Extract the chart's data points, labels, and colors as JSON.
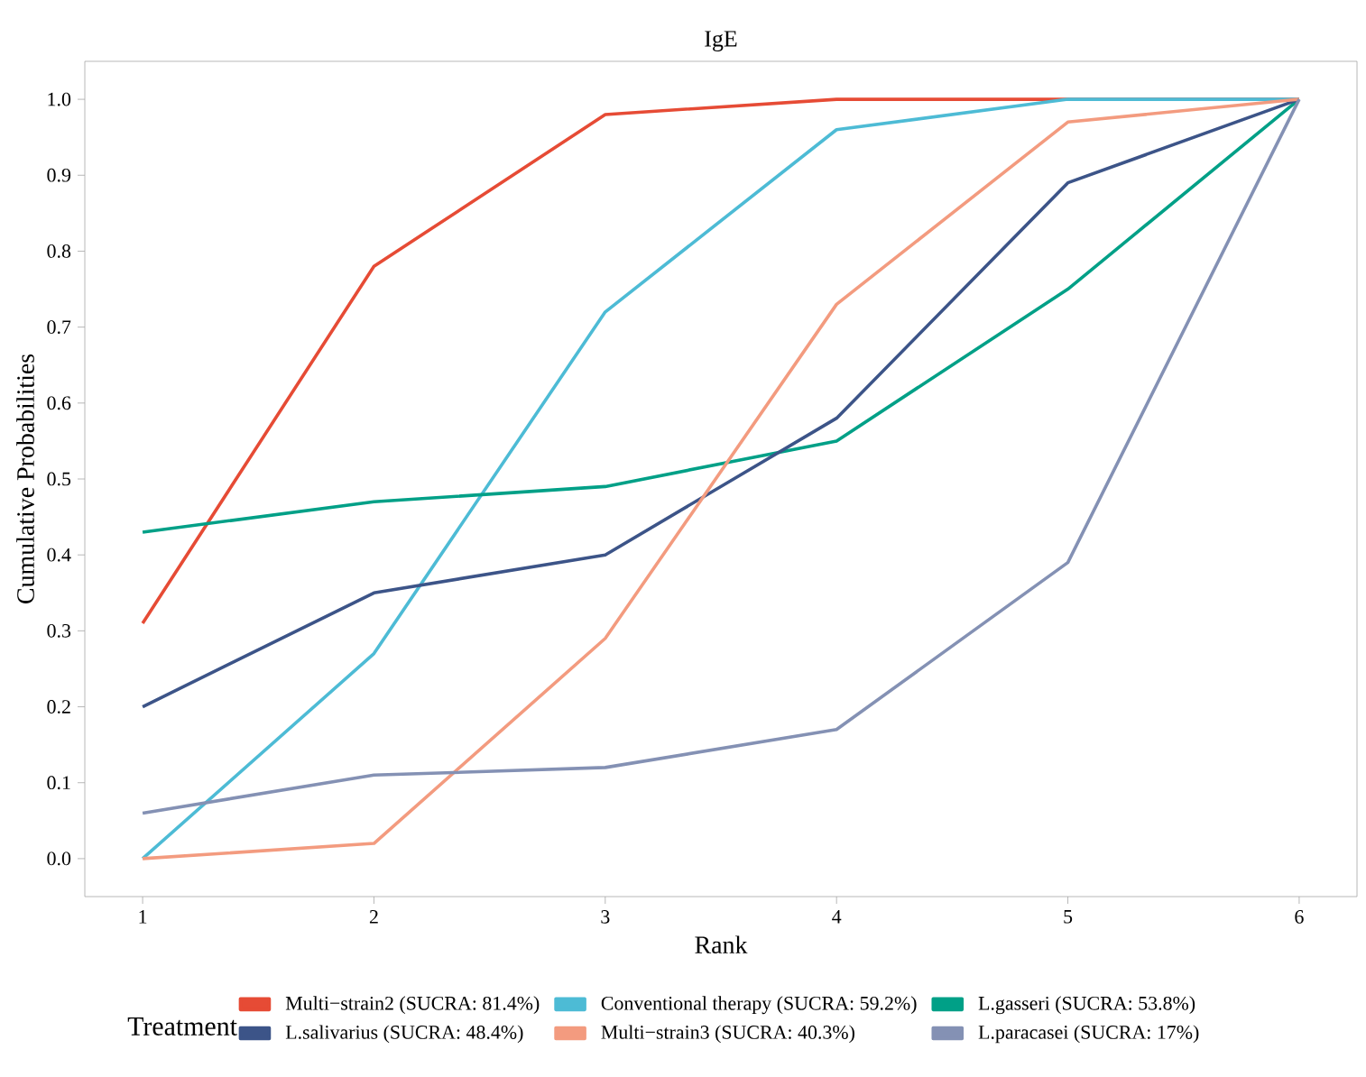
{
  "chart_data": {
    "type": "line",
    "title": "IgE",
    "xlabel": "Rank",
    "ylabel": "Cumulative Probabilities",
    "legend_title": "Treatment",
    "x": [
      1,
      2,
      3,
      4,
      5,
      6
    ],
    "series": [
      {
        "name": "Multi−strain2 (SUCRA: 81.4%)",
        "color": "#e64b35",
        "values": [
          0.31,
          0.78,
          0.98,
          1.0,
          1.0,
          1.0
        ]
      },
      {
        "name": "Conventional therapy (SUCRA: 59.2%)",
        "color": "#4dbbd5",
        "values": [
          0.0,
          0.27,
          0.72,
          0.96,
          1.0,
          1.0
        ]
      },
      {
        "name": "L.gasseri (SUCRA: 53.8%)",
        "color": "#00a087",
        "values": [
          0.43,
          0.47,
          0.49,
          0.55,
          0.75,
          1.0
        ]
      },
      {
        "name": "L.salivarius (SUCRA: 48.4%)",
        "color": "#3c5488",
        "values": [
          0.2,
          0.35,
          0.4,
          0.58,
          0.89,
          1.0
        ]
      },
      {
        "name": "Multi−strain3 (SUCRA: 40.3%)",
        "color": "#f39b7f",
        "values": [
          0.0,
          0.02,
          0.29,
          0.73,
          0.97,
          1.0
        ]
      },
      {
        "name": "L.paracasei (SUCRA: 17%)",
        "color": "#8491b4",
        "values": [
          0.06,
          0.11,
          0.12,
          0.17,
          0.39,
          1.0
        ]
      }
    ],
    "xlim": [
      0.75,
      6.25
    ],
    "xticks": [
      1,
      2,
      3,
      4,
      5,
      6
    ],
    "ylim": [
      -0.05,
      1.05
    ],
    "yticks": [
      {
        "value": 0,
        "label": "0.0"
      },
      {
        "value": 0.1,
        "label": "0.1"
      },
      {
        "value": 0.2,
        "label": "0.2"
      },
      {
        "value": 0.3,
        "label": "0.3"
      },
      {
        "value": 0.4,
        "label": "0.4"
      },
      {
        "value": 0.5,
        "label": "0.5"
      },
      {
        "value": 0.6,
        "label": "0.6"
      },
      {
        "value": 0.7,
        "label": "0.7"
      },
      {
        "value": 0.8,
        "label": "0.8"
      },
      {
        "value": 0.9,
        "label": "0.9"
      },
      {
        "value": 1.0,
        "label": "1.0"
      }
    ],
    "grid": false,
    "legend": "bottom",
    "marker": "none",
    "line_style": "solid"
  }
}
